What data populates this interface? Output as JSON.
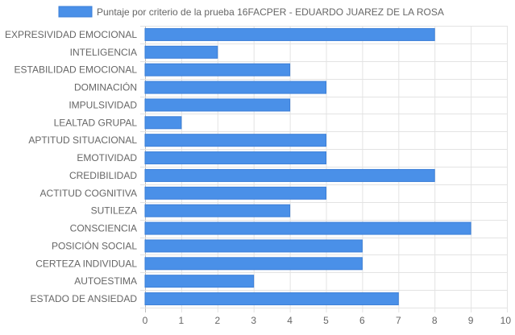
{
  "chart_data": {
    "type": "bar",
    "orientation": "horizontal",
    "categories": [
      "EXPRESIVIDAD EMOCIONAL",
      "INTELIGENCIA",
      "ESTABILIDAD EMOCIONAL",
      "DOMINACIÓN",
      "IMPULSIVIDAD",
      "LEALTAD GRUPAL",
      "APTITUD SITUACIONAL",
      "EMOTIVIDAD",
      "CREDIBILIDAD",
      "ACTITUD COGNITIVA",
      "SUTILEZA",
      "CONSCIENCIA",
      "POSICIÓN SOCIAL",
      "CERTEZA INDIVIDUAL",
      "AUTOESTIMA",
      "ESTADO DE ANSIEDAD"
    ],
    "series": [
      {
        "name": "Puntaje por criterio de la prueba 16FACPER - EDUARDO JUAREZ DE LA ROSA",
        "values": [
          8,
          2,
          4,
          5,
          4,
          1,
          5,
          5,
          8,
          5,
          4,
          9,
          6,
          6,
          3,
          7
        ],
        "color": "#4a90e8",
        "border_color": "#3b7fd8"
      }
    ],
    "xlim": [
      0,
      10
    ],
    "x_ticks": [
      0,
      1,
      2,
      3,
      4,
      5,
      6,
      7,
      8,
      9,
      10
    ],
    "grid": true,
    "legend_position": "top"
  }
}
